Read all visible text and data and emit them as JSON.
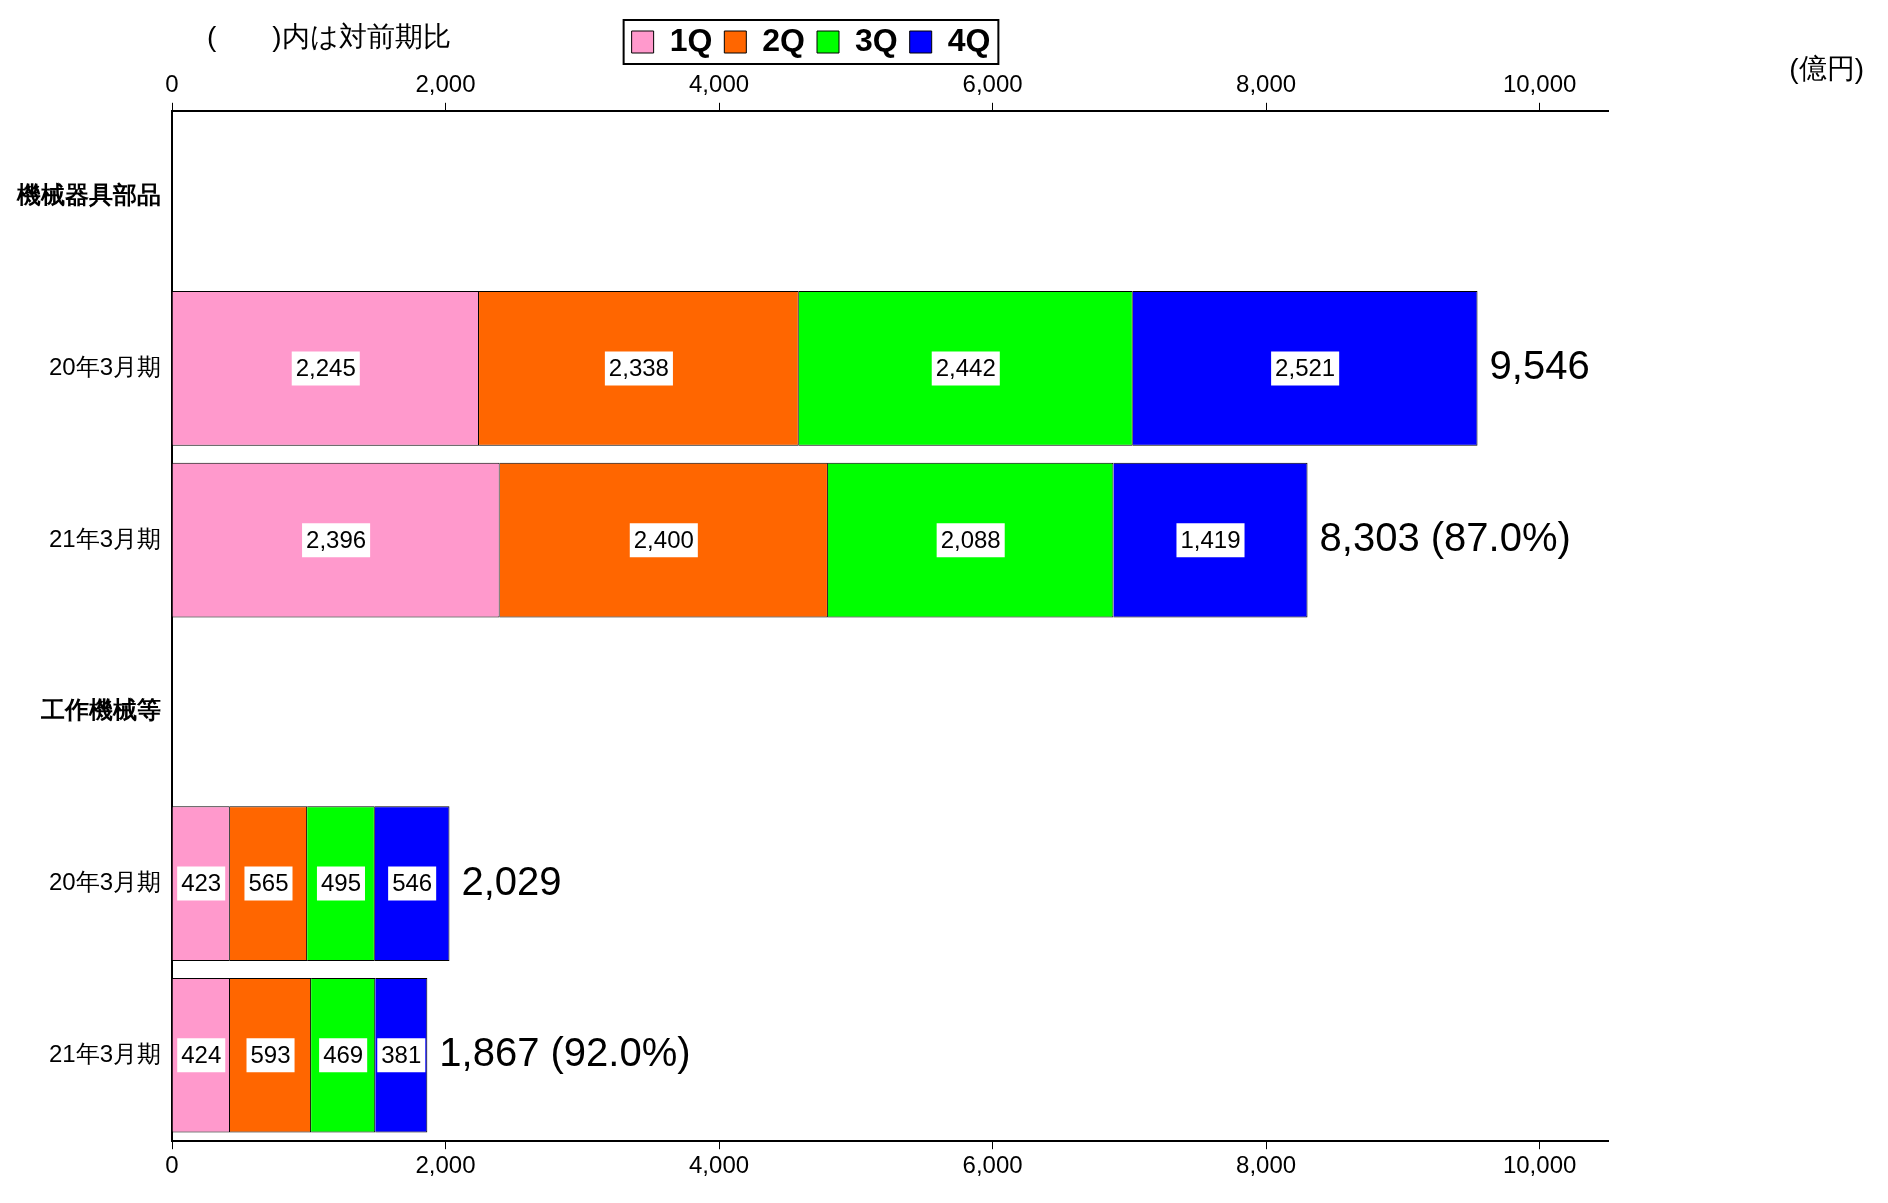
{
  "chart_data": {
    "type": "bar",
    "orientation": "horizontal",
    "stacked": true,
    "categories": [
      "機械器具部品",
      "20年3月期",
      "21年3月期",
      "工作機械等",
      "20年3月期",
      "21年3月期"
    ],
    "series": [
      {
        "name": "1Q",
        "color": "#ff99cc",
        "values": [
          null,
          2245,
          2396,
          null,
          423,
          424
        ],
        "value_labels": [
          null,
          "2,245",
          "2,396",
          null,
          "423",
          "424"
        ]
      },
      {
        "name": "2Q",
        "color": "#ff6600",
        "values": [
          null,
          2338,
          2400,
          null,
          565,
          593
        ],
        "value_labels": [
          null,
          "2,338",
          "2,400",
          null,
          "565",
          "593"
        ]
      },
      {
        "name": "3Q",
        "color": "#00ff00",
        "values": [
          null,
          2442,
          2088,
          null,
          495,
          469
        ],
        "value_labels": [
          null,
          "2,442",
          "2,088",
          null,
          "495",
          "469"
        ]
      },
      {
        "name": "4Q",
        "color": "#0000ff",
        "values": [
          null,
          2521,
          1419,
          null,
          546,
          381
        ],
        "value_labels": [
          null,
          "2,521",
          "1,419",
          null,
          "546",
          "381"
        ]
      }
    ],
    "xlim": [
      0,
      10500
    ],
    "xticks": [
      {
        "value": 0,
        "label": "0"
      },
      {
        "value": 2000,
        "label": "2,000"
      },
      {
        "value": 4000,
        "label": "4,000"
      },
      {
        "value": 6000,
        "label": "6,000"
      },
      {
        "value": 8000,
        "label": "8,000"
      },
      {
        "value": 10000,
        "label": "10,000"
      }
    ],
    "x2lim": [
      0,
      10500
    ],
    "x2ticks": [
      {
        "value": 0,
        "label": "0"
      },
      {
        "value": 2000,
        "label": "2,000"
      },
      {
        "value": 4000,
        "label": "4,000"
      },
      {
        "value": 6000,
        "label": "6,000"
      },
      {
        "value": 8000,
        "label": "8,000"
      },
      {
        "value": 10000,
        "label": "10,000"
      }
    ],
    "totals": [
      null,
      "9,546",
      "8,303 (87.0%)",
      null,
      "2,029",
      "1,867 (92.0%)"
    ],
    "legend": "top",
    "annotations": [
      "(　　)内は対前期比",
      "(億円)"
    ]
  }
}
